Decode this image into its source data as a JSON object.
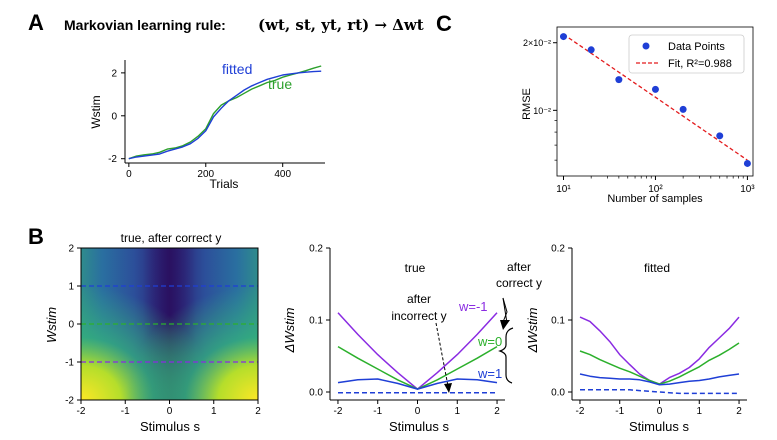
{
  "panels": {
    "a": "A",
    "b": "B",
    "c": "C"
  },
  "panel_a": {
    "rule_prefix": "Markovian learning rule:",
    "rule_formula": "(wt, st, yt, rt) → Δwt",
    "ylabel": "Wstim",
    "xlabel": "Trials",
    "xticks": [
      "0",
      "200",
      "400"
    ],
    "yticks": [
      "2",
      "0",
      "-2"
    ],
    "legend_fitted": "fitted",
    "legend_true": "true",
    "colors": {
      "fitted": "#1f3fd6",
      "true": "#2ca02c"
    }
  },
  "panel_c": {
    "ylabel": "RMSE",
    "xlabel": "Number of samples",
    "yticks": [
      "2×10⁻²",
      "10⁻²"
    ],
    "xticks": [
      "10¹",
      "10²",
      "10³"
    ],
    "legend_points": "Data Points",
    "legend_fit_text": "Fit, R²=0.988",
    "point_color": "#1f3fd6",
    "fit_color": "#e31a1c"
  },
  "panel_b": {
    "heatmap_title": "true, after correct y",
    "heatmap_ylabel": "Wstim",
    "heatmap_xlabel": "Stimulus s",
    "heatmap_yticks": [
      "2",
      "1",
      "0",
      "-1",
      "-2"
    ],
    "heatmap_xticks": [
      "-2",
      "-1",
      "0",
      "1",
      "2"
    ],
    "true_title": "true",
    "fitted_title": "fitted",
    "dw_ylabel": "ΔWstim",
    "dw_xlabel": "Stimulus s",
    "dw_yticks": [
      "0.2",
      "0.1",
      "0.0"
    ],
    "dw_xticks": [
      "-2",
      "-1",
      "0",
      "1",
      "2"
    ],
    "ann_after_correct": [
      "after",
      "correct y"
    ],
    "ann_after_incorrect": [
      "after",
      "incorrect y"
    ],
    "ann_w_neg1": "w=-1",
    "ann_w_0": "w=0",
    "ann_w_1": "w=1",
    "colors": {
      "w_neg1": "#8a2be2",
      "w_0": "#2cb02c",
      "w_1": "#1f3fd6"
    }
  },
  "chart_data": [
    {
      "id": "A",
      "type": "line",
      "title": "",
      "xlabel": "Trials",
      "ylabel": "Wstim",
      "xlim": [
        -10,
        510
      ],
      "ylim": [
        -2.2,
        2.6
      ],
      "series": [
        {
          "name": "fitted",
          "x": [
            0,
            20,
            40,
            60,
            80,
            100,
            120,
            140,
            160,
            180,
            200,
            220,
            240,
            260,
            280,
            300,
            320,
            340,
            360,
            380,
            400,
            420,
            440,
            460,
            480,
            500
          ],
          "y": [
            -2.0,
            -1.92,
            -1.88,
            -1.83,
            -1.78,
            -1.65,
            -1.55,
            -1.45,
            -1.3,
            -1.05,
            -0.7,
            -0.05,
            0.35,
            0.7,
            0.95,
            1.2,
            1.4,
            1.55,
            1.7,
            1.8,
            1.9,
            1.95,
            2.0,
            2.03,
            2.06,
            2.08
          ]
        },
        {
          "name": "true",
          "x": [
            0,
            20,
            40,
            60,
            80,
            100,
            120,
            140,
            160,
            180,
            200,
            220,
            240,
            260,
            280,
            300,
            320,
            340,
            360,
            380,
            400,
            420,
            440,
            460,
            480,
            500
          ],
          "y": [
            -2.0,
            -1.88,
            -1.82,
            -1.78,
            -1.7,
            -1.55,
            -1.5,
            -1.4,
            -1.22,
            -0.95,
            -0.6,
            0.1,
            0.5,
            0.7,
            0.85,
            1.05,
            1.25,
            1.4,
            1.55,
            1.65,
            1.8,
            1.9,
            2.0,
            2.1,
            2.22,
            2.32
          ]
        }
      ]
    },
    {
      "id": "C",
      "type": "scatter",
      "scale": "log-log",
      "xlabel": "Number of samples",
      "ylabel": "RMSE",
      "xlim": [
        8.5,
        1150
      ],
      "ylim": [
        0.0051,
        0.0235
      ],
      "series": [
        {
          "name": "Data Points",
          "x": [
            10,
            20,
            40,
            100,
            200,
            500,
            1000
          ],
          "y": [
            0.0213,
            0.0186,
            0.0137,
            0.0124,
            0.0101,
            0.0077,
            0.0058
          ]
        },
        {
          "name": "Fit, R²=0.988",
          "type": "line",
          "x": [
            10,
            1000
          ],
          "y": [
            0.0218,
            0.006
          ]
        }
      ]
    },
    {
      "id": "B-heatmap",
      "type": "heatmap",
      "title": "true, after correct y",
      "xlabel": "Stimulus s",
      "ylabel": "Wstim",
      "xlim": [
        -2,
        2
      ],
      "ylim": [
        -2,
        2
      ],
      "hlines": [
        {
          "y": 1,
          "color": "#1f3fd6",
          "style": "dashed"
        },
        {
          "y": 0,
          "color": "#2cb02c",
          "style": "dashed"
        },
        {
          "y": -1,
          "color": "#8a2be2",
          "style": "dashed"
        }
      ]
    },
    {
      "id": "B-true",
      "type": "line",
      "title": "true",
      "xlabel": "Stimulus s",
      "ylabel": "ΔWstim",
      "xlim": [
        -2.2,
        2.2
      ],
      "ylim": [
        -0.01,
        0.2
      ],
      "x": [
        -2,
        -1.5,
        -1,
        -0.5,
        0,
        0.5,
        1,
        1.5,
        2
      ],
      "series": [
        {
          "name": "w=-1",
          "values": [
            0.11,
            0.08,
            0.052,
            0.027,
            0.004,
            0.027,
            0.052,
            0.08,
            0.11
          ]
        },
        {
          "name": "w=0",
          "values": [
            0.063,
            0.047,
            0.032,
            0.017,
            0.004,
            0.017,
            0.032,
            0.047,
            0.063
          ]
        },
        {
          "name": "w=1",
          "values": [
            0.013,
            0.017,
            0.018,
            0.012,
            0.004,
            0.012,
            0.018,
            0.017,
            0.013
          ]
        },
        {
          "name": "after incorrect y",
          "style": "dashed",
          "values": [
            -0.001,
            -0.001,
            -0.001,
            -0.001,
            -0.001,
            -0.001,
            -0.001,
            -0.001,
            -0.001
          ]
        }
      ]
    },
    {
      "id": "B-fitted",
      "type": "line",
      "title": "fitted",
      "xlabel": "Stimulus s",
      "ylabel": "ΔWstim",
      "xlim": [
        -2.2,
        2.2
      ],
      "ylim": [
        -0.01,
        0.2
      ],
      "x": [
        -2,
        -1.75,
        -1.5,
        -1.25,
        -1,
        -0.75,
        -0.5,
        -0.25,
        0,
        0.25,
        0.5,
        0.75,
        1,
        1.25,
        1.5,
        1.75,
        2
      ],
      "series": [
        {
          "name": "w=-1",
          "values": [
            0.104,
            0.098,
            0.085,
            0.07,
            0.052,
            0.038,
            0.025,
            0.016,
            0.011,
            0.02,
            0.026,
            0.034,
            0.046,
            0.062,
            0.075,
            0.088,
            0.104
          ]
        },
        {
          "name": "w=0",
          "values": [
            0.057,
            0.052,
            0.045,
            0.039,
            0.033,
            0.028,
            0.022,
            0.016,
            0.011,
            0.015,
            0.021,
            0.028,
            0.035,
            0.044,
            0.051,
            0.059,
            0.068
          ]
        },
        {
          "name": "w=1",
          "values": [
            0.025,
            0.022,
            0.02,
            0.019,
            0.018,
            0.018,
            0.017,
            0.014,
            0.01,
            0.011,
            0.013,
            0.015,
            0.016,
            0.018,
            0.021,
            0.023,
            0.025
          ]
        },
        {
          "name": "after incorrect y",
          "style": "dashed",
          "values": [
            0.003,
            0.003,
            0.003,
            0.003,
            0.003,
            0.003,
            0.002,
            0.001,
            0.0,
            -0.001,
            -0.002,
            -0.002,
            -0.002,
            -0.002,
            -0.002,
            -0.002,
            -0.002
          ]
        }
      ]
    }
  ]
}
